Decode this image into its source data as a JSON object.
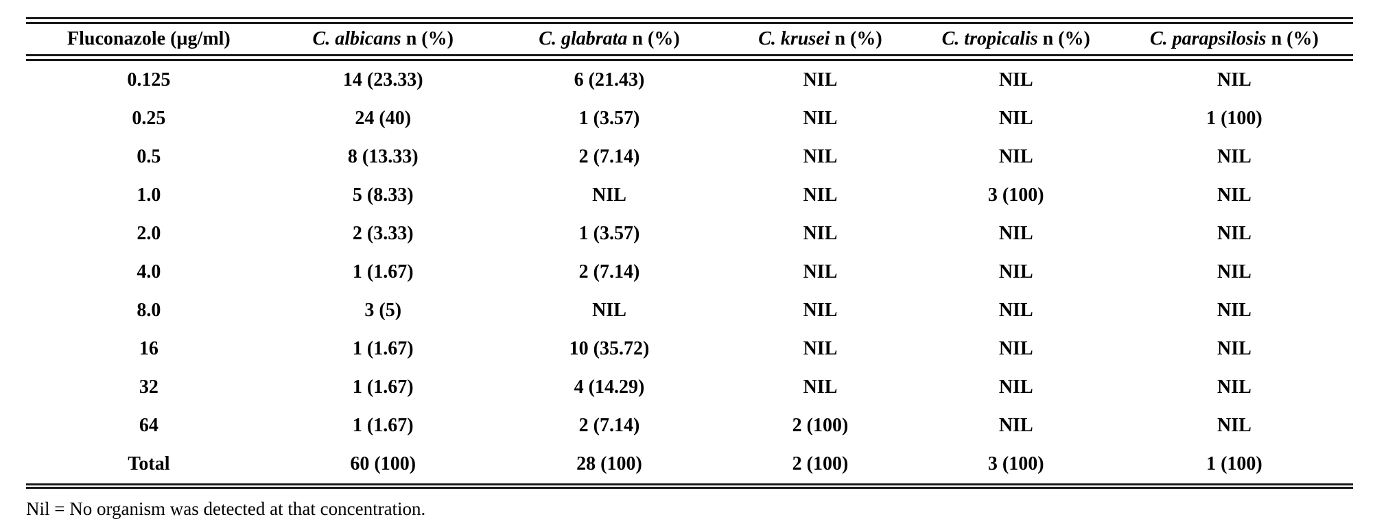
{
  "table": {
    "headers": [
      {
        "em": "",
        "rest": "Fluconazole (µg/ml)"
      },
      {
        "em": "C. albicans",
        "rest": " n (%)"
      },
      {
        "em": "C. glabrata",
        "rest": " n (%)"
      },
      {
        "em": "C. krusei",
        "rest": " n (%)"
      },
      {
        "em": "C. tropicalis",
        "rest": " n (%)"
      },
      {
        "em": "C. parapsilosis",
        "rest": " n (%)"
      }
    ],
    "rows": [
      [
        "0.125",
        "14 (23.33)",
        "6 (21.43)",
        "NIL",
        "NIL",
        "NIL"
      ],
      [
        "0.25",
        "24 (40)",
        "1 (3.57)",
        "NIL",
        "NIL",
        "1 (100)"
      ],
      [
        "0.5",
        "8 (13.33)",
        "2 (7.14)",
        "NIL",
        "NIL",
        "NIL"
      ],
      [
        "1.0",
        "5 (8.33)",
        "NIL",
        "NIL",
        "3 (100)",
        "NIL"
      ],
      [
        "2.0",
        "2 (3.33)",
        "1 (3.57)",
        "NIL",
        "NIL",
        "NIL"
      ],
      [
        "4.0",
        "1 (1.67)",
        "2 (7.14)",
        "NIL",
        "NIL",
        "NIL"
      ],
      [
        "8.0",
        "3 (5)",
        "NIL",
        "NIL",
        "NIL",
        "NIL"
      ],
      [
        "16",
        "1 (1.67)",
        "10 (35.72)",
        "NIL",
        "NIL",
        "NIL"
      ],
      [
        "32",
        "1 (1.67)",
        "4 (14.29)",
        "NIL",
        "NIL",
        "NIL"
      ],
      [
        "64",
        "1 (1.67)",
        "2 (7.14)",
        "2 (100)",
        "NIL",
        "NIL"
      ],
      [
        "Total",
        "60 (100)",
        "28 (100)",
        "2 (100)",
        "3 (100)",
        "1 (100)"
      ]
    ]
  },
  "footnote": "Nil = No organism was detected at that concentration."
}
